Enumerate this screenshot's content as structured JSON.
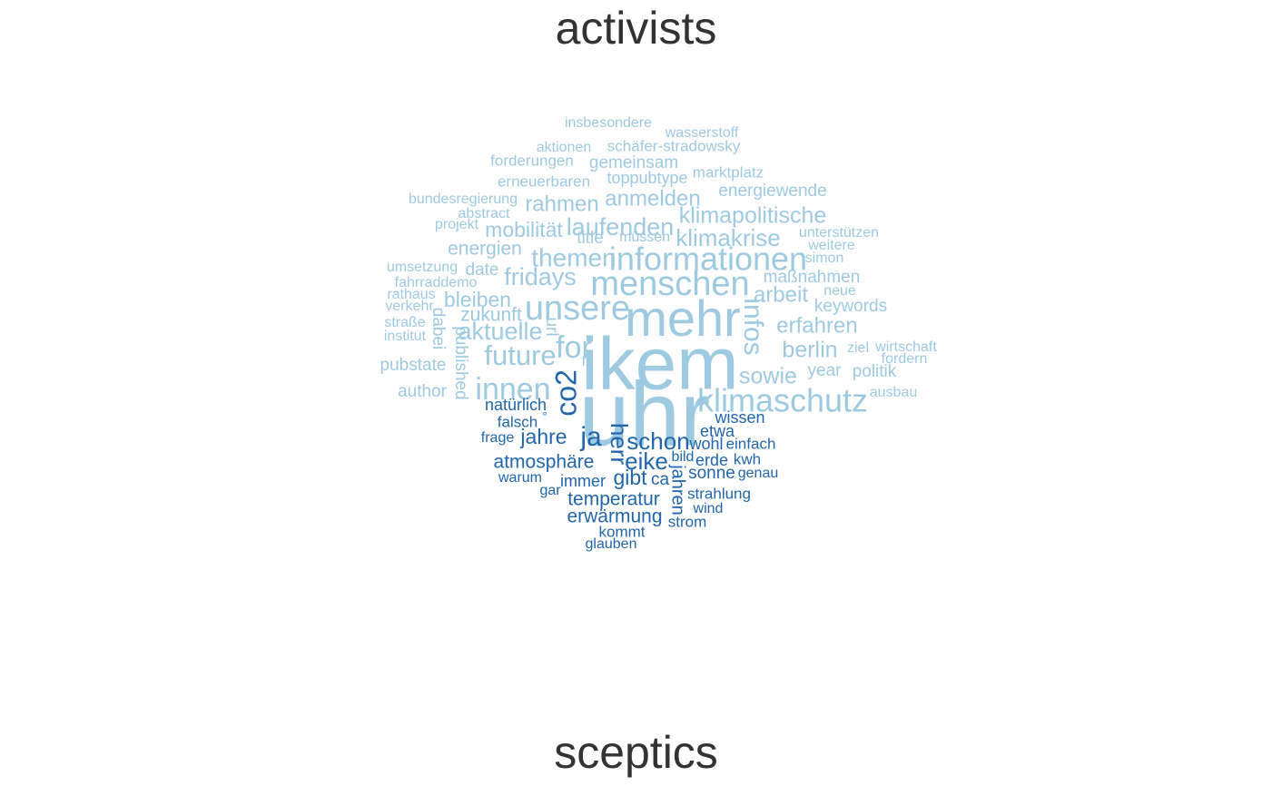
{
  "chart_data": {
    "type": "comparison wordcloud",
    "groups": [
      {
        "name": "activists",
        "color": "#9ecae1"
      },
      {
        "name": "sceptics",
        "color": "#2166ac"
      }
    ],
    "words": [
      {
        "text": "uhr",
        "group": "activists"
      },
      {
        "text": "ikem",
        "group": "activists"
      },
      {
        "text": "mehr",
        "group": "activists"
      },
      {
        "text": "menschen",
        "group": "activists"
      },
      {
        "text": "informationen",
        "group": "activists"
      },
      {
        "text": "klimaschutz",
        "group": "activists"
      },
      {
        "text": "unsere",
        "group": "activists"
      },
      {
        "text": "innen",
        "group": "activists"
      },
      {
        "text": "for",
        "group": "activists"
      },
      {
        "text": "future",
        "group": "activists"
      },
      {
        "text": "infos",
        "group": "activists"
      },
      {
        "text": "themen",
        "group": "activists"
      },
      {
        "text": "laufenden",
        "group": "activists"
      },
      {
        "text": "klimakrise",
        "group": "activists"
      },
      {
        "text": "klimapolitische",
        "group": "activists"
      },
      {
        "text": "anmelden",
        "group": "activists"
      },
      {
        "text": "fridays",
        "group": "activists"
      },
      {
        "text": "aktuelle",
        "group": "activists"
      },
      {
        "text": "sowie",
        "group": "activists"
      },
      {
        "text": "berlin",
        "group": "activists"
      },
      {
        "text": "erfahren",
        "group": "activists"
      },
      {
        "text": "arbeit",
        "group": "activists"
      },
      {
        "text": "rahmen",
        "group": "activists"
      },
      {
        "text": "mobilität",
        "group": "activists"
      },
      {
        "text": "bleiben",
        "group": "activists"
      },
      {
        "text": "zukunft",
        "group": "activists"
      },
      {
        "text": "energien",
        "group": "activists"
      },
      {
        "text": "gemeinsam",
        "group": "activists"
      },
      {
        "text": "energiewende",
        "group": "activists"
      },
      {
        "text": "maßnahmen",
        "group": "activists"
      },
      {
        "text": "keywords",
        "group": "activists"
      },
      {
        "text": "pubstate",
        "group": "activists"
      },
      {
        "text": "author",
        "group": "activists"
      },
      {
        "text": "published",
        "group": "activists"
      },
      {
        "text": "year",
        "group": "activists"
      },
      {
        "text": "politik",
        "group": "activists"
      },
      {
        "text": "schäfer-stradowsky",
        "group": "activists"
      },
      {
        "text": "erneuerbaren",
        "group": "activists"
      },
      {
        "text": "toppubtype",
        "group": "activists"
      },
      {
        "text": "marktplatz",
        "group": "activists"
      },
      {
        "text": "forderungen",
        "group": "activists"
      },
      {
        "text": "aktionen",
        "group": "activists"
      },
      {
        "text": "wasserstoff",
        "group": "activists"
      },
      {
        "text": "insbesondere",
        "group": "activists"
      },
      {
        "text": "bundesregierung",
        "group": "activists"
      },
      {
        "text": "abstract",
        "group": "activists"
      },
      {
        "text": "projekt",
        "group": "activists"
      },
      {
        "text": "title",
        "group": "activists"
      },
      {
        "text": "müssen",
        "group": "activists"
      },
      {
        "text": "unterstützen",
        "group": "activists"
      },
      {
        "text": "weitere",
        "group": "activists"
      },
      {
        "text": "simon",
        "group": "activists"
      },
      {
        "text": "umsetzung",
        "group": "activists"
      },
      {
        "text": "date",
        "group": "activists"
      },
      {
        "text": "fahrraddemo",
        "group": "activists"
      },
      {
        "text": "rathaus",
        "group": "activists"
      },
      {
        "text": "verkehr",
        "group": "activists"
      },
      {
        "text": "straße",
        "group": "activists"
      },
      {
        "text": "institut",
        "group": "activists"
      },
      {
        "text": "dabei",
        "group": "activists"
      },
      {
        "text": "url",
        "group": "activists"
      },
      {
        "text": "neue",
        "group": "activists"
      },
      {
        "text": "ziel",
        "group": "activists"
      },
      {
        "text": "wirtschaft",
        "group": "activists"
      },
      {
        "text": "fordern",
        "group": "activists"
      },
      {
        "text": "ausbau",
        "group": "activists"
      },
      {
        "text": "fff",
        "group": "activists"
      },
      {
        "text": "co2",
        "group": "sceptics"
      },
      {
        "text": "ja",
        "group": "sceptics"
      },
      {
        "text": "herr",
        "group": "sceptics"
      },
      {
        "text": "schon",
        "group": "sceptics"
      },
      {
        "text": "jahre",
        "group": "sceptics"
      },
      {
        "text": "atmosphäre",
        "group": "sceptics"
      },
      {
        "text": "eike",
        "group": "sceptics"
      },
      {
        "text": "gibt",
        "group": "sceptics"
      },
      {
        "text": "temperatur",
        "group": "sceptics"
      },
      {
        "text": "erwärmung",
        "group": "sceptics"
      },
      {
        "text": "jahren",
        "group": "sceptics"
      },
      {
        "text": "natürlich",
        "group": "sceptics"
      },
      {
        "text": "falsch",
        "group": "sceptics"
      },
      {
        "text": "°",
        "group": "sceptics"
      },
      {
        "text": "frage",
        "group": "sceptics"
      },
      {
        "text": "warum",
        "group": "sceptics"
      },
      {
        "text": "immer",
        "group": "sceptics"
      },
      {
        "text": "gar",
        "group": "sceptics"
      },
      {
        "text": "ca",
        "group": "sceptics"
      },
      {
        "text": "wissen",
        "group": "sceptics"
      },
      {
        "text": "etwa",
        "group": "sceptics"
      },
      {
        "text": "wohl",
        "group": "sceptics"
      },
      {
        "text": "einfach",
        "group": "sceptics"
      },
      {
        "text": "bild",
        "group": "sceptics"
      },
      {
        "text": "erde",
        "group": "sceptics"
      },
      {
        "text": "kwh",
        "group": "sceptics"
      },
      {
        "text": "sonne",
        "group": "sceptics"
      },
      {
        "text": "genau",
        "group": "sceptics"
      },
      {
        "text": "strahlung",
        "group": "sceptics"
      },
      {
        "text": "wind",
        "group": "sceptics"
      },
      {
        "text": "strom",
        "group": "sceptics"
      },
      {
        "text": "kommt",
        "group": "sceptics"
      },
      {
        "text": "glauben",
        "group": "sceptics"
      }
    ]
  }
}
